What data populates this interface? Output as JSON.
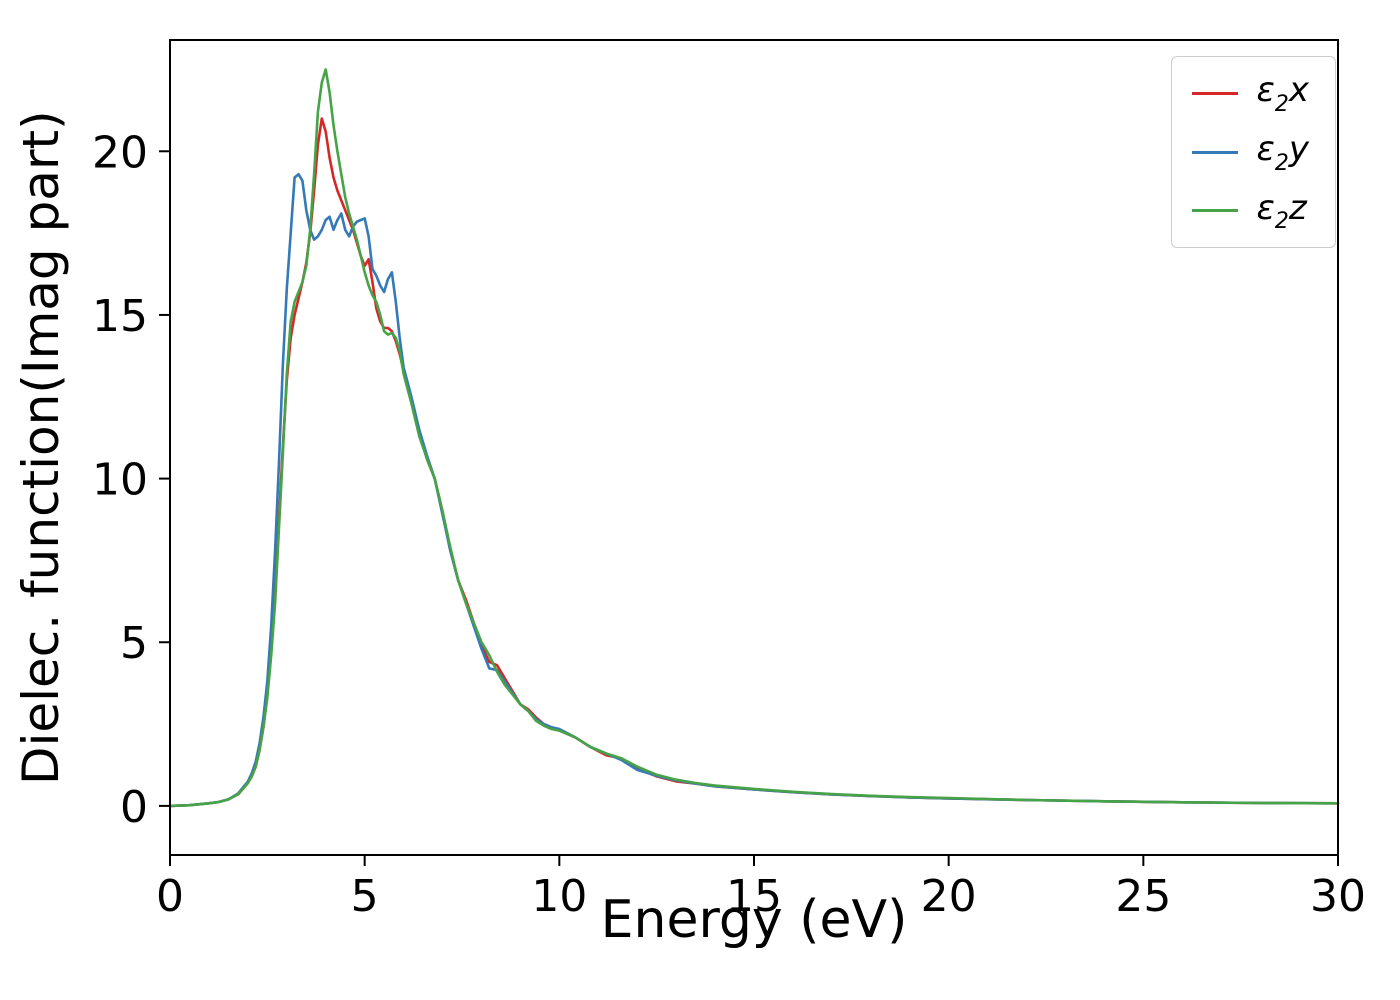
{
  "figure": {
    "xlabel": "Energy (eV)",
    "ylabel": "Dielec. function(Imag part)"
  },
  "chart_data": {
    "type": "line",
    "title": "",
    "xlabel": "Energy (eV)",
    "ylabel": "Dielec. function(Imag part)",
    "xlim": [
      0,
      30
    ],
    "ylim": [
      -1.5,
      23.4
    ],
    "xticks": [
      0,
      5,
      10,
      15,
      20,
      25,
      30
    ],
    "yticks": [
      0,
      5,
      10,
      15,
      20
    ],
    "grid": false,
    "legend_position": "upper right",
    "x": [
      0,
      0.5,
      1.0,
      1.25,
      1.5,
      1.75,
      2.0,
      2.1,
      2.2,
      2.3,
      2.4,
      2.5,
      2.6,
      2.7,
      2.8,
      2.9,
      3.0,
      3.1,
      3.2,
      3.3,
      3.4,
      3.5,
      3.6,
      3.7,
      3.8,
      3.9,
      4.0,
      4.1,
      4.2,
      4.3,
      4.4,
      4.5,
      4.6,
      4.7,
      4.8,
      4.9,
      5.0,
      5.1,
      5.2,
      5.3,
      5.4,
      5.5,
      5.6,
      5.7,
      5.8,
      5.9,
      6.0,
      6.2,
      6.4,
      6.6,
      6.8,
      7.0,
      7.2,
      7.4,
      7.6,
      7.8,
      8.0,
      8.2,
      8.4,
      8.6,
      8.8,
      9.0,
      9.2,
      9.4,
      9.6,
      9.8,
      10.0,
      10.4,
      10.8,
      11.2,
      11.6,
      12.0,
      12.5,
      13.0,
      13.5,
      14.0,
      15.0,
      16.0,
      17.0,
      18.0,
      19.0,
      20.0,
      22.0,
      24.0,
      26.0,
      28.0,
      30.0
    ],
    "series": [
      {
        "label_symbol": "ε",
        "label_sub": "2",
        "label_var": "x",
        "color": "#d62728",
        "values": [
          0,
          0.02,
          0.08,
          0.12,
          0.2,
          0.35,
          0.7,
          0.9,
          1.2,
          1.7,
          2.4,
          3.4,
          4.8,
          6.5,
          8.8,
          11.0,
          13.0,
          14.3,
          15.0,
          15.5,
          16.0,
          16.6,
          17.5,
          18.8,
          20.2,
          21.0,
          20.6,
          19.8,
          19.2,
          18.8,
          18.5,
          18.2,
          17.9,
          17.6,
          17.2,
          16.8,
          16.5,
          16.7,
          16.0,
          15.2,
          14.8,
          14.6,
          14.6,
          14.5,
          14.2,
          13.8,
          13.3,
          12.4,
          11.4,
          10.6,
          10.0,
          9.0,
          7.8,
          6.9,
          6.3,
          5.6,
          4.9,
          4.4,
          4.3,
          3.9,
          3.5,
          3.1,
          2.95,
          2.7,
          2.5,
          2.4,
          2.3,
          2.1,
          1.8,
          1.55,
          1.45,
          1.15,
          0.9,
          0.75,
          0.68,
          0.6,
          0.5,
          0.42,
          0.35,
          0.3,
          0.26,
          0.23,
          0.18,
          0.14,
          0.11,
          0.09,
          0.08
        ]
      },
      {
        "label_symbol": "ε",
        "label_sub": "2",
        "label_var": "y",
        "color": "#3579b8",
        "values": [
          0,
          0.02,
          0.08,
          0.12,
          0.2,
          0.38,
          0.75,
          1.0,
          1.35,
          1.9,
          2.7,
          3.8,
          5.5,
          7.8,
          10.5,
          13.5,
          15.8,
          17.5,
          19.2,
          19.3,
          19.1,
          18.2,
          17.6,
          17.3,
          17.4,
          17.6,
          17.9,
          18.0,
          17.6,
          17.9,
          18.1,
          17.6,
          17.4,
          17.7,
          17.85,
          17.9,
          17.95,
          17.4,
          16.4,
          16.2,
          15.9,
          15.7,
          16.1,
          16.3,
          15.4,
          14.3,
          13.4,
          12.5,
          11.5,
          10.7,
          10.0,
          8.9,
          7.8,
          6.9,
          6.2,
          5.5,
          4.8,
          4.2,
          4.15,
          3.8,
          3.45,
          3.1,
          2.9,
          2.65,
          2.5,
          2.4,
          2.35,
          2.1,
          1.8,
          1.6,
          1.4,
          1.1,
          0.92,
          0.78,
          0.68,
          0.6,
          0.5,
          0.42,
          0.35,
          0.3,
          0.26,
          0.23,
          0.18,
          0.14,
          0.11,
          0.09,
          0.08
        ]
      },
      {
        "label_symbol": "ε",
        "label_sub": "2",
        "label_var": "z",
        "color": "#47a347",
        "values": [
          0,
          0.02,
          0.08,
          0.12,
          0.2,
          0.35,
          0.7,
          0.9,
          1.2,
          1.7,
          2.4,
          3.3,
          4.6,
          6.2,
          8.5,
          10.8,
          13.2,
          14.8,
          15.4,
          15.7,
          16.0,
          16.5,
          17.6,
          19.3,
          21.2,
          22.1,
          22.5,
          21.8,
          20.8,
          20.0,
          19.3,
          18.6,
          18.1,
          17.7,
          17.3,
          16.8,
          16.3,
          15.9,
          15.6,
          15.4,
          15.0,
          14.5,
          14.4,
          14.45,
          14.3,
          13.9,
          13.2,
          12.3,
          11.3,
          10.6,
          10.0,
          9.0,
          7.9,
          6.9,
          6.2,
          5.6,
          5.0,
          4.6,
          4.1,
          3.7,
          3.4,
          3.1,
          2.9,
          2.6,
          2.45,
          2.35,
          2.3,
          2.1,
          1.8,
          1.6,
          1.45,
          1.2,
          0.95,
          0.8,
          0.7,
          0.62,
          0.52,
          0.43,
          0.36,
          0.31,
          0.27,
          0.24,
          0.18,
          0.14,
          0.11,
          0.09,
          0.08
        ]
      }
    ]
  }
}
